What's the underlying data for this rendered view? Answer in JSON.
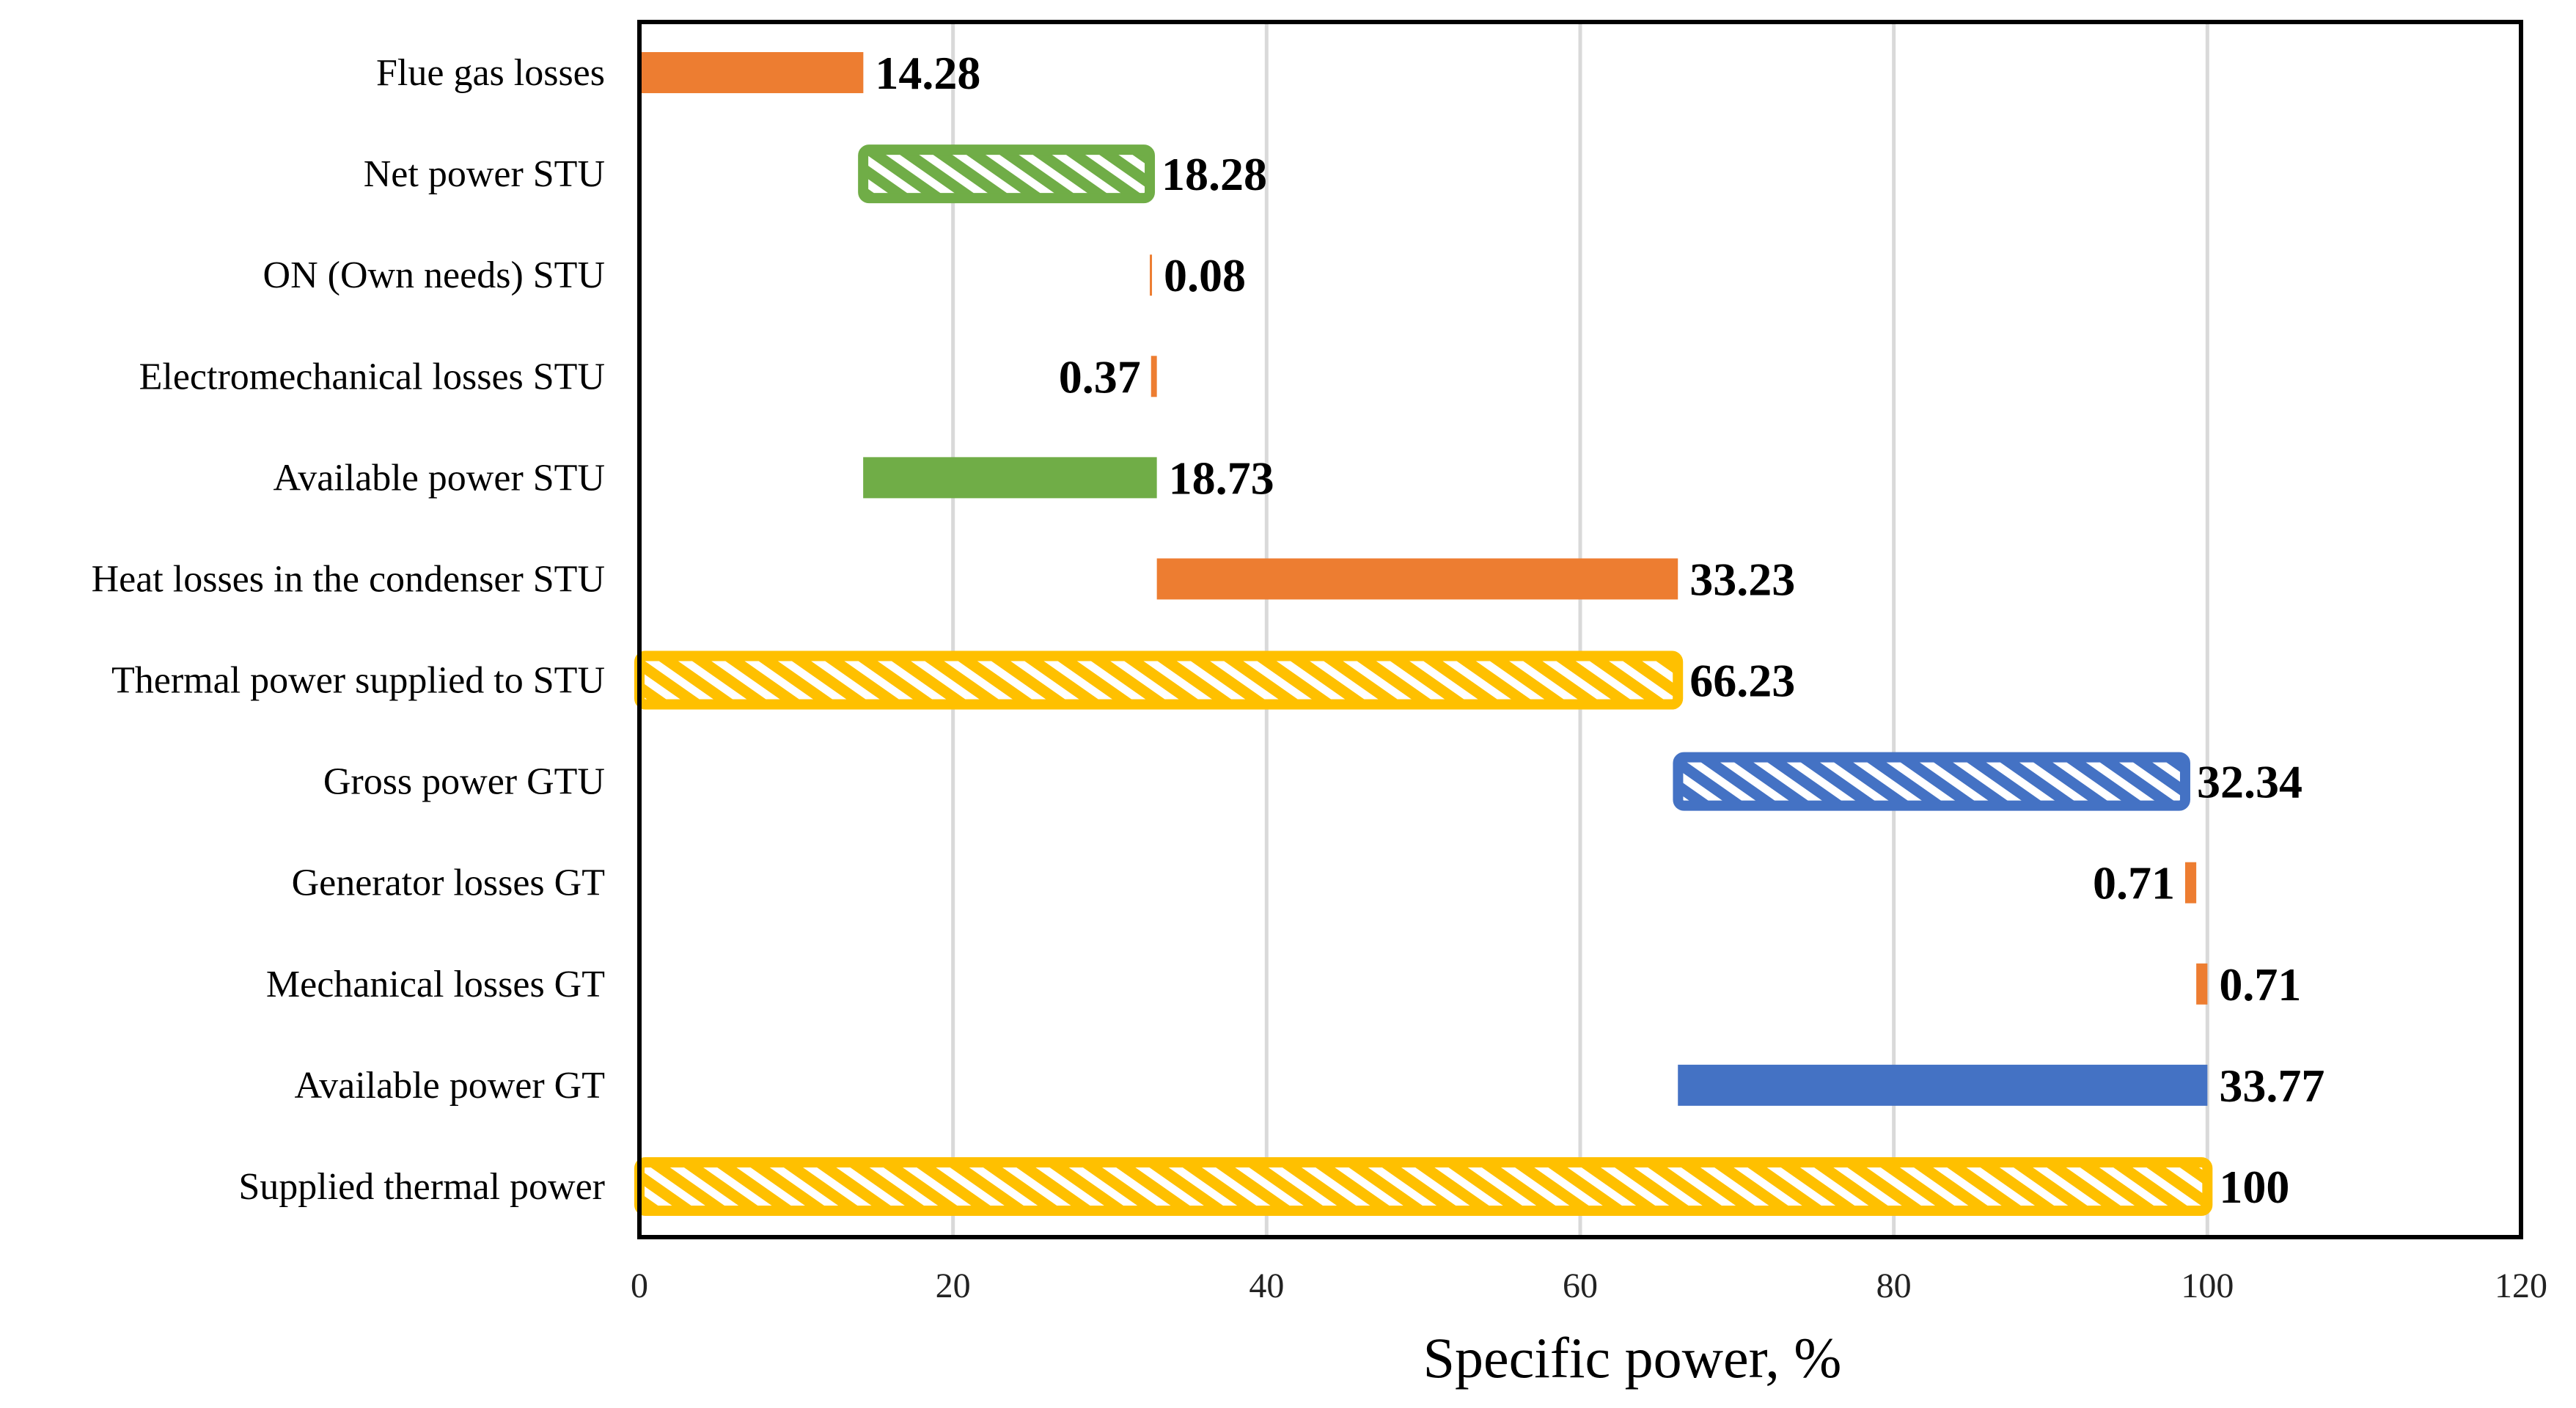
{
  "chart_data": {
    "type": "bar",
    "orientation": "horizontal",
    "subtype": "floating-waterfall",
    "title": "",
    "xlabel": "Specific power, %",
    "ylabel": "",
    "xlim": [
      0,
      120
    ],
    "xticks": [
      0,
      20,
      40,
      60,
      80,
      100,
      120
    ],
    "grid": "vertical",
    "categories": [
      "Supplied thermal power",
      "Available power GT",
      "Mechanical losses GT",
      "Generator losses GT",
      "Gross power GTU",
      "Thermal power supplied to STU",
      "Heat losses in the condenser STU",
      "Available power STU",
      "Electromechanical losses STU",
      "ON (Own needs) STU",
      "Net power STU",
      "Flue gas losses"
    ],
    "bars": [
      {
        "start": 0,
        "value": 100,
        "label": "100",
        "style": "hatched",
        "color": "#FFC000",
        "label_side": "right"
      },
      {
        "start": 66.23,
        "value": 33.77,
        "label": "33.77",
        "style": "solid",
        "color": "#4472C4",
        "label_side": "right"
      },
      {
        "start": 99.29,
        "value": 0.71,
        "label": "0.71",
        "style": "solid",
        "color": "#ED7D31",
        "label_side": "right"
      },
      {
        "start": 98.58,
        "value": 0.71,
        "label": "0.71",
        "style": "solid",
        "color": "#ED7D31",
        "label_side": "left"
      },
      {
        "start": 66.24,
        "value": 32.34,
        "label": "32.34",
        "style": "hatched",
        "color": "#4472C4",
        "label_side": "right"
      },
      {
        "start": 0,
        "value": 66.23,
        "label": "66.23",
        "style": "hatched",
        "color": "#FFC000",
        "label_side": "right"
      },
      {
        "start": 33.0,
        "value": 33.23,
        "label": "33.23",
        "style": "solid",
        "color": "#ED7D31",
        "label_side": "right"
      },
      {
        "start": 14.27,
        "value": 18.73,
        "label": "18.73",
        "style": "solid",
        "color": "#70AD47",
        "label_side": "right"
      },
      {
        "start": 32.63,
        "value": 0.37,
        "label": "0.37",
        "style": "solid",
        "color": "#ED7D31",
        "label_side": "left"
      },
      {
        "start": 32.55,
        "value": 0.08,
        "label": "0.08",
        "style": "solid",
        "color": "#ED7D31",
        "label_side": "right"
      },
      {
        "start": 14.27,
        "value": 18.28,
        "label": "18.28",
        "style": "hatched",
        "color": "#70AD47",
        "label_side": "right"
      },
      {
        "start": 0,
        "value": 14.28,
        "label": "14.28",
        "style": "solid",
        "color": "#ED7D31",
        "label_side": "right"
      }
    ]
  }
}
